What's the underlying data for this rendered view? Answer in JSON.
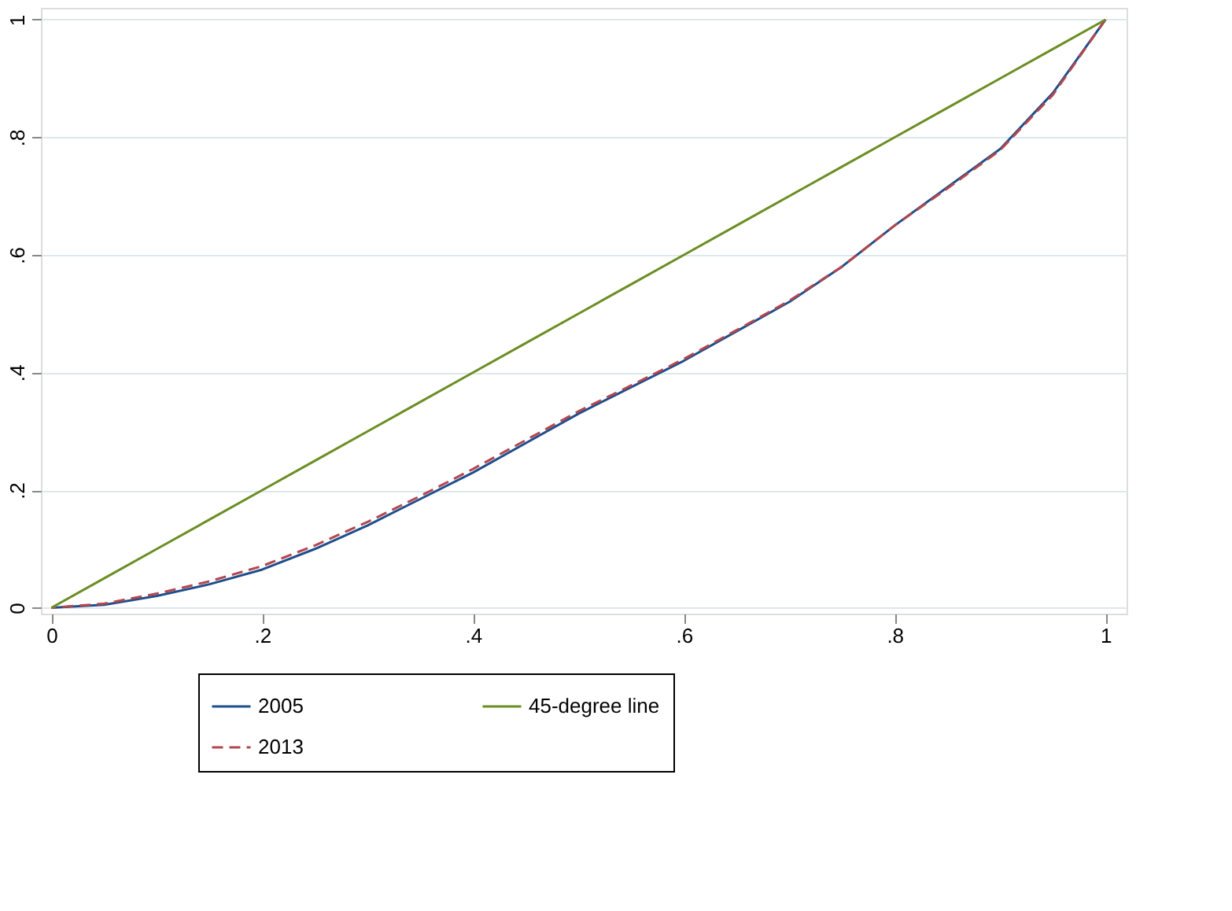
{
  "chart_data": {
    "type": "line",
    "x": [
      0,
      0.05,
      0.1,
      0.15,
      0.2,
      0.25,
      0.3,
      0.35,
      0.4,
      0.45,
      0.5,
      0.55,
      0.6,
      0.65,
      0.7,
      0.75,
      0.8,
      0.85,
      0.9,
      0.95,
      1
    ],
    "series": [
      {
        "name": "2005",
        "color": "#1f4e8c",
        "line_style": "solid",
        "values": [
          0,
          0.005,
          0.02,
          0.04,
          0.065,
          0.1,
          0.14,
          0.185,
          0.23,
          0.28,
          0.33,
          0.375,
          0.42,
          0.47,
          0.52,
          0.58,
          0.65,
          0.715,
          0.78,
          0.875,
          1
        ]
      },
      {
        "name": "2013",
        "color": "#b2474f",
        "line_style": "dashed",
        "values": [
          0,
          0.007,
          0.024,
          0.045,
          0.071,
          0.106,
          0.146,
          0.19,
          0.236,
          0.285,
          0.334,
          0.378,
          0.423,
          0.472,
          0.522,
          0.58,
          0.65,
          0.713,
          0.778,
          0.872,
          1
        ]
      },
      {
        "name": "45-degree line",
        "color": "#6b8e23",
        "line_style": "solid",
        "values": [
          0,
          0.05,
          0.1,
          0.15,
          0.2,
          0.25,
          0.3,
          0.35,
          0.4,
          0.45,
          0.5,
          0.55,
          0.6,
          0.65,
          0.7,
          0.75,
          0.8,
          0.85,
          0.9,
          0.95,
          1
        ]
      }
    ],
    "xlim": [
      -0.01,
      1.02
    ],
    "ylim": [
      -0.01,
      1.02
    ],
    "xticks": [
      {
        "value": 0,
        "label": "0"
      },
      {
        "value": 0.2,
        "label": ".2"
      },
      {
        "value": 0.4,
        "label": ".4"
      },
      {
        "value": 0.6,
        "label": ".6"
      },
      {
        "value": 0.8,
        "label": ".8"
      },
      {
        "value": 1,
        "label": "1"
      }
    ],
    "yticks": [
      {
        "value": 0,
        "label": "0"
      },
      {
        "value": 0.2,
        "label": ".2"
      },
      {
        "value": 0.4,
        "label": ".4"
      },
      {
        "value": 0.6,
        "label": ".6"
      },
      {
        "value": 0.8,
        "label": ".8"
      },
      {
        "value": 1,
        "label": "1"
      }
    ],
    "grid": "y",
    "legend": "bottom"
  }
}
